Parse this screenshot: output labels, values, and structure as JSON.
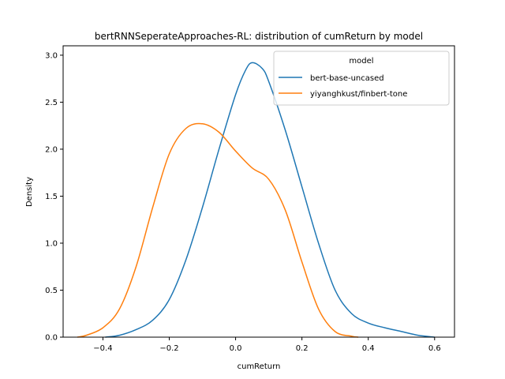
{
  "chart_data": {
    "type": "line",
    "title": "bertRNNSeperateApproaches-RL: distribution of cumReturn by model",
    "xlabel": "cumReturn",
    "ylabel": "Density",
    "xlim": [
      -0.52,
      0.66
    ],
    "ylim": [
      0,
      3.1
    ],
    "xticks": [
      -0.4,
      -0.2,
      0.0,
      0.2,
      0.4,
      0.6
    ],
    "xtick_labels": [
      "−0.4",
      "−0.2",
      "0.0",
      "0.2",
      "0.4",
      "0.6"
    ],
    "yticks": [
      0,
      0.5,
      1.0,
      1.5,
      2.0,
      2.5,
      3.0
    ],
    "ytick_labels": [
      "0.0",
      "0.5",
      "1.0",
      "1.5",
      "2.0",
      "2.5",
      "3.0"
    ],
    "grid": false,
    "legend": {
      "title": "model",
      "placement": "top-right"
    },
    "series": [
      {
        "name": "bert-base-uncased",
        "color": "#1f77b4",
        "x": [
          -0.393,
          -0.35,
          -0.3,
          -0.25,
          -0.2,
          -0.15,
          -0.1,
          -0.05,
          0.0,
          0.03,
          0.05,
          0.08,
          0.1,
          0.15,
          0.2,
          0.25,
          0.3,
          0.35,
          0.4,
          0.45,
          0.5,
          0.55,
          0.6
        ],
        "y": [
          0.0,
          0.02,
          0.08,
          0.18,
          0.4,
          0.82,
          1.38,
          2.0,
          2.58,
          2.84,
          2.92,
          2.86,
          2.72,
          2.2,
          1.6,
          1.0,
          0.5,
          0.25,
          0.15,
          0.1,
          0.06,
          0.02,
          0.0
        ]
      },
      {
        "name": "yiyanghkust/finbert-tone",
        "color": "#ff7f0e",
        "x": [
          -0.477,
          -0.45,
          -0.4,
          -0.35,
          -0.3,
          -0.25,
          -0.2,
          -0.15,
          -0.1,
          -0.05,
          0.0,
          0.05,
          0.1,
          0.15,
          0.2,
          0.25,
          0.3,
          0.35,
          0.37
        ],
        "y": [
          0.0,
          0.02,
          0.1,
          0.3,
          0.75,
          1.38,
          1.95,
          2.22,
          2.27,
          2.18,
          1.98,
          1.8,
          1.68,
          1.35,
          0.8,
          0.3,
          0.06,
          0.01,
          0.0
        ]
      }
    ]
  }
}
